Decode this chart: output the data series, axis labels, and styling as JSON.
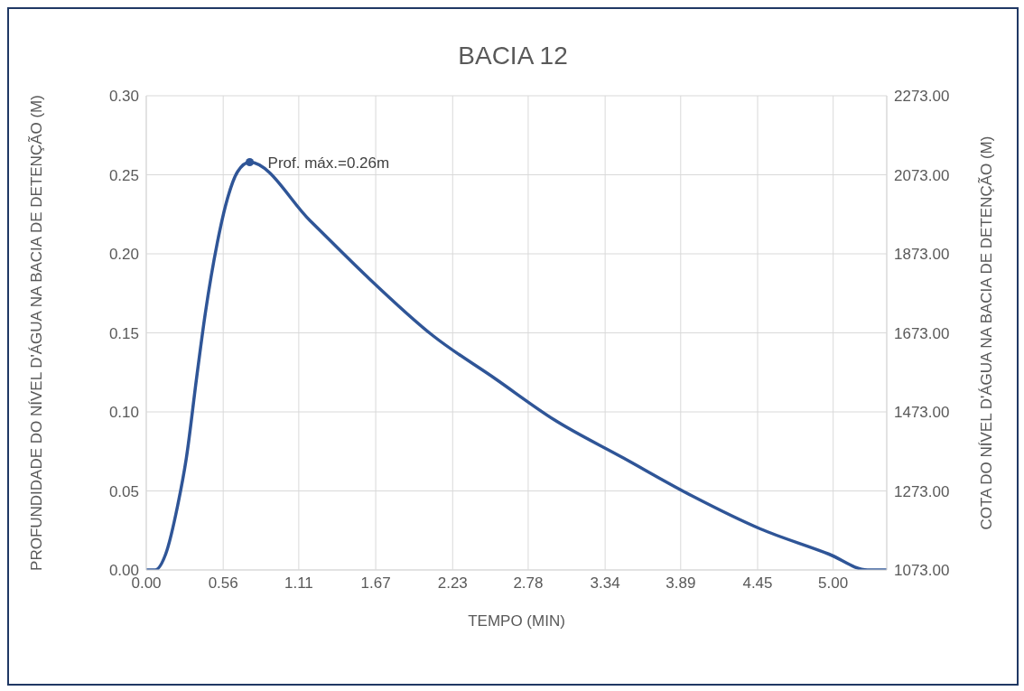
{
  "chart_data": {
    "type": "line",
    "title": "BACIA 12",
    "xlabel": "TEMPO (MIN)",
    "ylabel": "PROFUNDIDADE DO NÍVEL D'ÁGUA NA BACIA DE DETENÇÃO (M)",
    "y2label": "COTA DO NÍVEL D'ÁGUA NA BACIA DE DETENÇÃO (M)",
    "series": [
      {
        "color": "#2f5597",
        "x": [
          0,
          0.065,
          0.141,
          0.229,
          0.292,
          0.367,
          0.429,
          0.517,
          0.591,
          0.665,
          0.753,
          1.192,
          1.59,
          2.09,
          2.54,
          2.97,
          3.47,
          3.97,
          4.47,
          4.97,
          5.25,
          5.39
        ],
        "values": [
          0,
          0,
          0.01,
          0.041,
          0.071,
          0.122,
          0.162,
          0.207,
          0.235,
          0.252,
          0.258,
          0.221,
          0.187,
          0.148,
          0.121,
          0.095,
          0.071,
          0.047,
          0.026,
          0.01,
          0,
          0
        ]
      },
      {
        "type": "scatter",
        "color": "#2f5597",
        "x": [
          0.753
        ],
        "values": [
          0.258
        ]
      }
    ],
    "annotations": [
      {
        "text": "Prof. máx.=0.26m",
        "x": 0.753,
        "y": 0.258
      }
    ],
    "xlim": [
      0,
      5.39
    ],
    "xticks": [
      {
        "value": 0,
        "label": "0.00"
      },
      {
        "value": 0.56,
        "label": "0.56"
      },
      1.11,
      1.67,
      2.23,
      2.78,
      3.34,
      3.89,
      4.45,
      {
        "value": 5.0,
        "label": "5.00"
      }
    ],
    "ylim": [
      0,
      0.3
    ],
    "yticks": [
      {
        "value": 0,
        "label": "0.00"
      },
      0.05,
      {
        "value": 0.1,
        "label": "0.10"
      },
      0.15,
      {
        "value": 0.2,
        "label": "0.20"
      },
      0.25,
      {
        "value": 0.3,
        "label": "0.30"
      }
    ],
    "y2lim": [
      1073,
      2273
    ],
    "y2ticks": [
      {
        "value": 1073,
        "label": "1073.00"
      },
      {
        "value": 1273,
        "label": "1273.00"
      },
      {
        "value": 1473,
        "label": "1473.00"
      },
      {
        "value": 1673,
        "label": "1673.00"
      },
      {
        "value": 1873,
        "label": "1873.00"
      },
      {
        "value": 2073,
        "label": "2073.00"
      },
      {
        "value": 2273,
        "label": "2273.00"
      }
    ],
    "grid": true
  }
}
